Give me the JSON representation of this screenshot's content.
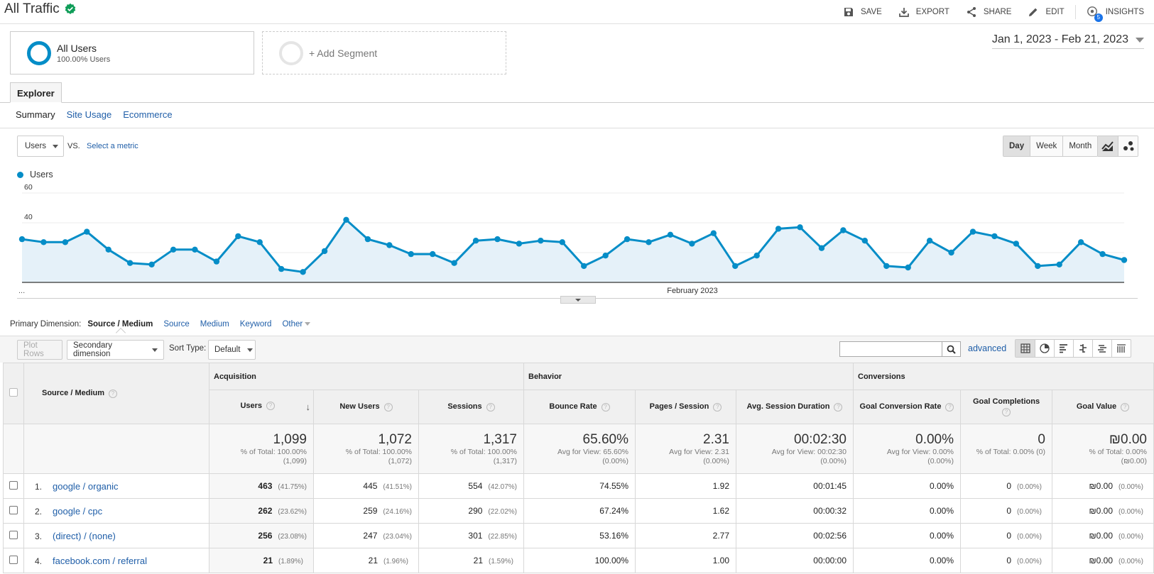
{
  "header": {
    "title": "All Traffic",
    "actions": {
      "save": "SAVE",
      "export": "EXPORT",
      "share": "SHARE",
      "edit": "EDIT",
      "insights": "INSIGHTS",
      "insights_badge": "5"
    }
  },
  "segments": {
    "all_users": {
      "title": "All Users",
      "subtitle": "100.00% Users"
    },
    "add_segment": "+ Add Segment"
  },
  "date_range": "Jan 1, 2023 - Feb 21, 2023",
  "explorer": {
    "tab": "Explorer",
    "subtabs": [
      "Summary",
      "Site Usage",
      "Ecommerce"
    ]
  },
  "metric_controls": {
    "metric": "Users",
    "vs": "VS.",
    "select_metric": "Select a metric",
    "periods": [
      "Day",
      "Week",
      "Month"
    ],
    "active_period": "Day"
  },
  "chart_data": {
    "type": "area",
    "series": [
      {
        "name": "Users",
        "values": [
          29,
          27,
          27,
          34,
          22,
          13,
          12,
          22,
          22,
          14,
          31,
          27,
          9,
          7,
          21,
          42,
          29,
          25,
          19,
          19,
          13,
          28,
          29,
          26,
          28,
          27,
          11,
          18,
          29,
          27,
          32,
          26,
          33,
          11,
          18,
          36,
          37,
          23,
          35,
          28,
          11,
          10,
          28,
          20,
          34,
          31,
          26,
          11,
          12,
          27,
          19,
          15
        ]
      }
    ],
    "ylim": [
      0,
      60
    ],
    "yticks": [
      "60",
      "40",
      "20"
    ],
    "x_label": "February 2023",
    "x_start_label": "...",
    "color": "#058dc7",
    "fill": "#e5f1f9"
  },
  "primary_dimension": {
    "label": "Primary Dimension:",
    "options": [
      "Source / Medium",
      "Source",
      "Medium",
      "Keyword",
      "Other"
    ]
  },
  "toolbar": {
    "plot_rows": "Plot Rows",
    "secondary_dimension": "Secondary dimension",
    "sort_type_label": "Sort Type:",
    "sort_type": "Default",
    "advanced": "advanced"
  },
  "table": {
    "groups": [
      "Acquisition",
      "Behavior",
      "Conversions"
    ],
    "dim_header": "Source / Medium",
    "columns": [
      "Users",
      "New Users",
      "Sessions",
      "Bounce Rate",
      "Pages / Session",
      "Avg. Session Duration",
      "Goal Conversion Rate",
      "Goal Completions",
      "Goal Value"
    ],
    "totals": [
      {
        "value": "1,099",
        "sub1": "% of Total: 100.00%",
        "sub2": "(1,099)"
      },
      {
        "value": "1,072",
        "sub1": "% of Total: 100.00%",
        "sub2": "(1,072)"
      },
      {
        "value": "1,317",
        "sub1": "% of Total: 100.00%",
        "sub2": "(1,317)"
      },
      {
        "value": "65.60%",
        "sub1": "Avg for View: 65.60%",
        "sub2": "(0.00%)"
      },
      {
        "value": "2.31",
        "sub1": "Avg for View: 2.31",
        "sub2": "(0.00%)"
      },
      {
        "value": "00:02:30",
        "sub1": "Avg for View: 00:02:30",
        "sub2": "(0.00%)"
      },
      {
        "value": "0.00%",
        "sub1": "Avg for View: 0.00%",
        "sub2": "(0.00%)"
      },
      {
        "value": "0",
        "sub1": "% of Total: 0.00% (0)",
        "sub2": ""
      },
      {
        "value": "₪0.00",
        "sub1": "% of Total: 0.00%",
        "sub2": "(₪0.00)"
      }
    ],
    "rows": [
      {
        "idx": "1.",
        "name": "google / organic",
        "users": "463",
        "users_pct": "(41.75%)",
        "new_users": "445",
        "new_users_pct": "(41.51%)",
        "sessions": "554",
        "sessions_pct": "(42.07%)",
        "bounce": "74.55%",
        "pages": "1.92",
        "duration": "00:01:45",
        "conv": "0.00%",
        "completions": "0",
        "completions_pct": "(0.00%)",
        "value": "₪0.00",
        "value_pct": "(0.00%)"
      },
      {
        "idx": "2.",
        "name": "google / cpc",
        "users": "262",
        "users_pct": "(23.62%)",
        "new_users": "259",
        "new_users_pct": "(24.16%)",
        "sessions": "290",
        "sessions_pct": "(22.02%)",
        "bounce": "67.24%",
        "pages": "1.62",
        "duration": "00:00:32",
        "conv": "0.00%",
        "completions": "0",
        "completions_pct": "(0.00%)",
        "value": "₪0.00",
        "value_pct": "(0.00%)"
      },
      {
        "idx": "3.",
        "name": "(direct) / (none)",
        "users": "256",
        "users_pct": "(23.08%)",
        "new_users": "247",
        "new_users_pct": "(23.04%)",
        "sessions": "301",
        "sessions_pct": "(22.85%)",
        "bounce": "53.16%",
        "pages": "2.77",
        "duration": "00:02:56",
        "conv": "0.00%",
        "completions": "0",
        "completions_pct": "(0.00%)",
        "value": "₪0.00",
        "value_pct": "(0.00%)"
      },
      {
        "idx": "4.",
        "name": "facebook.com / referral",
        "users": "21",
        "users_pct": "(1.89%)",
        "new_users": "21",
        "new_users_pct": "(1.96%)",
        "sessions": "21",
        "sessions_pct": "(1.59%)",
        "bounce": "100.00%",
        "pages": "1.00",
        "duration": "00:00:00",
        "conv": "0.00%",
        "completions": "0",
        "completions_pct": "(0.00%)",
        "value": "₪0.00",
        "value_pct": "(0.00%)"
      }
    ]
  }
}
